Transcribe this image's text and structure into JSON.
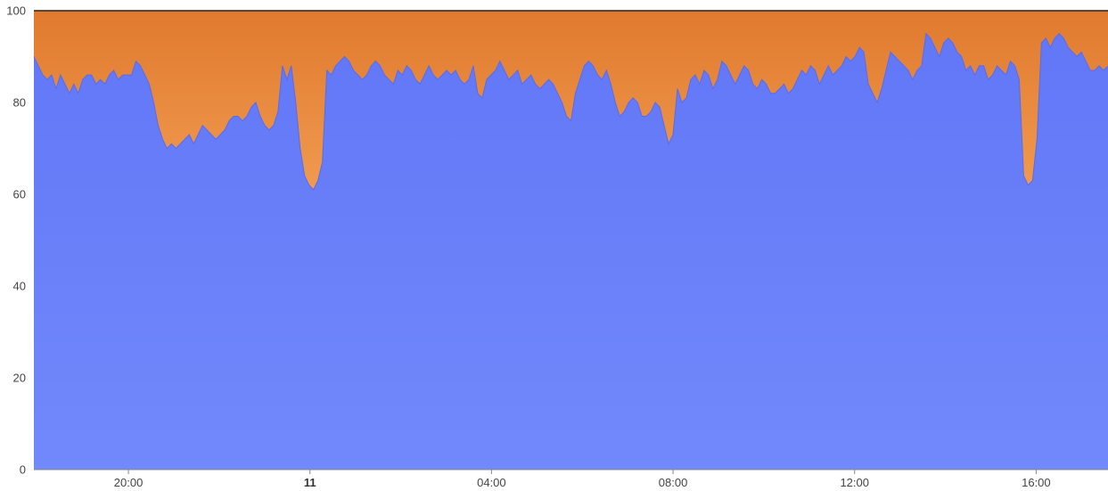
{
  "chart_data": {
    "type": "area",
    "stacked": true,
    "percent_stacked": true,
    "title": "",
    "xlabel": "",
    "ylabel": "",
    "ylim": [
      0,
      100
    ],
    "y_ticks": [
      0,
      20,
      40,
      60,
      80,
      100
    ],
    "x_ticks": [
      {
        "label": "20:00",
        "major": false
      },
      {
        "label": "11",
        "major": true
      },
      {
        "label": "04:00",
        "major": false
      },
      {
        "label": "08:00",
        "major": false
      },
      {
        "label": "12:00",
        "major": false
      },
      {
        "label": "16:00",
        "major": false
      }
    ],
    "x_start": "17:55",
    "x_end": "17:35",
    "grid": false,
    "legend": "none",
    "colors": {
      "lower": "#6b7ff7",
      "upper": "#e98a3c",
      "top_line": "#222222",
      "axis": "#888888"
    },
    "series": [
      {
        "values": [
          90,
          88,
          86,
          85,
          86,
          83,
          86,
          84,
          82,
          84,
          82,
          85,
          86,
          86,
          84,
          85,
          84,
          86,
          87,
          85,
          86,
          86,
          86,
          89,
          88,
          86,
          84,
          80,
          75,
          72,
          70,
          71,
          70,
          71,
          72,
          73,
          71,
          73,
          75,
          74,
          73,
          72,
          73,
          74,
          76,
          77,
          77,
          76,
          77,
          79,
          80,
          77,
          75,
          74,
          75,
          78,
          88,
          85,
          88,
          80,
          70,
          64,
          62,
          61,
          63,
          67,
          87,
          86,
          88,
          89,
          90,
          89,
          87,
          86,
          85,
          86,
          88,
          89,
          88,
          86,
          85,
          84,
          87,
          86,
          88,
          87,
          85,
          84,
          86,
          88,
          86,
          85,
          86,
          87,
          86,
          87,
          85,
          84,
          85,
          88,
          82,
          81,
          85,
          86,
          87,
          89,
          87,
          85,
          86,
          87,
          84,
          85,
          86,
          84,
          83,
          84,
          85,
          84,
          82,
          80,
          77,
          76,
          82,
          85,
          88,
          89,
          88,
          86,
          85,
          87,
          84,
          80,
          77,
          78,
          80,
          81,
          80,
          77,
          77,
          78,
          80,
          79,
          75,
          71,
          73,
          83,
          80,
          81,
          85,
          86,
          84,
          87,
          86,
          83,
          85,
          89,
          88,
          86,
          84,
          86,
          88,
          87,
          84,
          83,
          85,
          84,
          82,
          82,
          83,
          84,
          82,
          83,
          85,
          87,
          86,
          88,
          87,
          84,
          86,
          88,
          86,
          87,
          88,
          90,
          89,
          90,
          92,
          91,
          84,
          82,
          80,
          83,
          87,
          91,
          90,
          89,
          88,
          87,
          85,
          87,
          88,
          95,
          94,
          92,
          90,
          93,
          94,
          93,
          91,
          90,
          87,
          88,
          86,
          88,
          88,
          85,
          86,
          88,
          87,
          86,
          89,
          88,
          85,
          64,
          62,
          63,
          72,
          93,
          94,
          92,
          94,
          95,
          94,
          92,
          91,
          90,
          91,
          89,
          87,
          87,
          88,
          87,
          88
        ],
        "color": "#6b7ff7"
      },
      {
        "values": [
          10,
          12,
          14,
          15,
          14,
          17,
          14,
          16,
          18,
          16,
          18,
          15,
          14,
          14,
          16,
          15,
          16,
          14,
          13,
          15,
          14,
          14,
          14,
          11,
          12,
          14,
          16,
          20,
          25,
          28,
          30,
          29,
          30,
          29,
          28,
          27,
          29,
          27,
          25,
          26,
          27,
          28,
          27,
          26,
          24,
          23,
          23,
          24,
          23,
          21,
          20,
          23,
          25,
          26,
          25,
          22,
          12,
          15,
          12,
          20,
          30,
          36,
          38,
          39,
          37,
          33,
          13,
          14,
          12,
          11,
          10,
          11,
          13,
          14,
          15,
          14,
          12,
          11,
          12,
          14,
          15,
          16,
          13,
          14,
          12,
          13,
          15,
          16,
          14,
          12,
          14,
          15,
          14,
          13,
          14,
          13,
          15,
          16,
          15,
          12,
          18,
          19,
          15,
          14,
          13,
          11,
          13,
          15,
          14,
          13,
          16,
          15,
          14,
          16,
          17,
          16,
          15,
          16,
          18,
          20,
          23,
          24,
          18,
          15,
          12,
          11,
          12,
          14,
          15,
          13,
          16,
          20,
          23,
          22,
          20,
          19,
          20,
          23,
          23,
          22,
          20,
          21,
          25,
          29,
          27,
          17,
          20,
          19,
          15,
          14,
          16,
          13,
          14,
          17,
          15,
          11,
          12,
          14,
          16,
          14,
          12,
          13,
          16,
          17,
          15,
          16,
          18,
          18,
          17,
          16,
          18,
          17,
          15,
          13,
          14,
          12,
          13,
          16,
          14,
          12,
          14,
          13,
          12,
          10,
          11,
          10,
          8,
          9,
          16,
          18,
          20,
          17,
          13,
          9,
          10,
          11,
          12,
          13,
          15,
          13,
          12,
          5,
          6,
          8,
          10,
          7,
          6,
          7,
          9,
          10,
          13,
          12,
          14,
          12,
          12,
          15,
          14,
          12,
          13,
          14,
          11,
          12,
          15,
          36,
          38,
          37,
          28,
          7,
          6,
          8,
          6,
          5,
          6,
          8,
          9,
          10,
          9,
          11,
          13,
          13,
          12,
          13,
          12
        ],
        "color": "#e98a3c"
      }
    ]
  }
}
